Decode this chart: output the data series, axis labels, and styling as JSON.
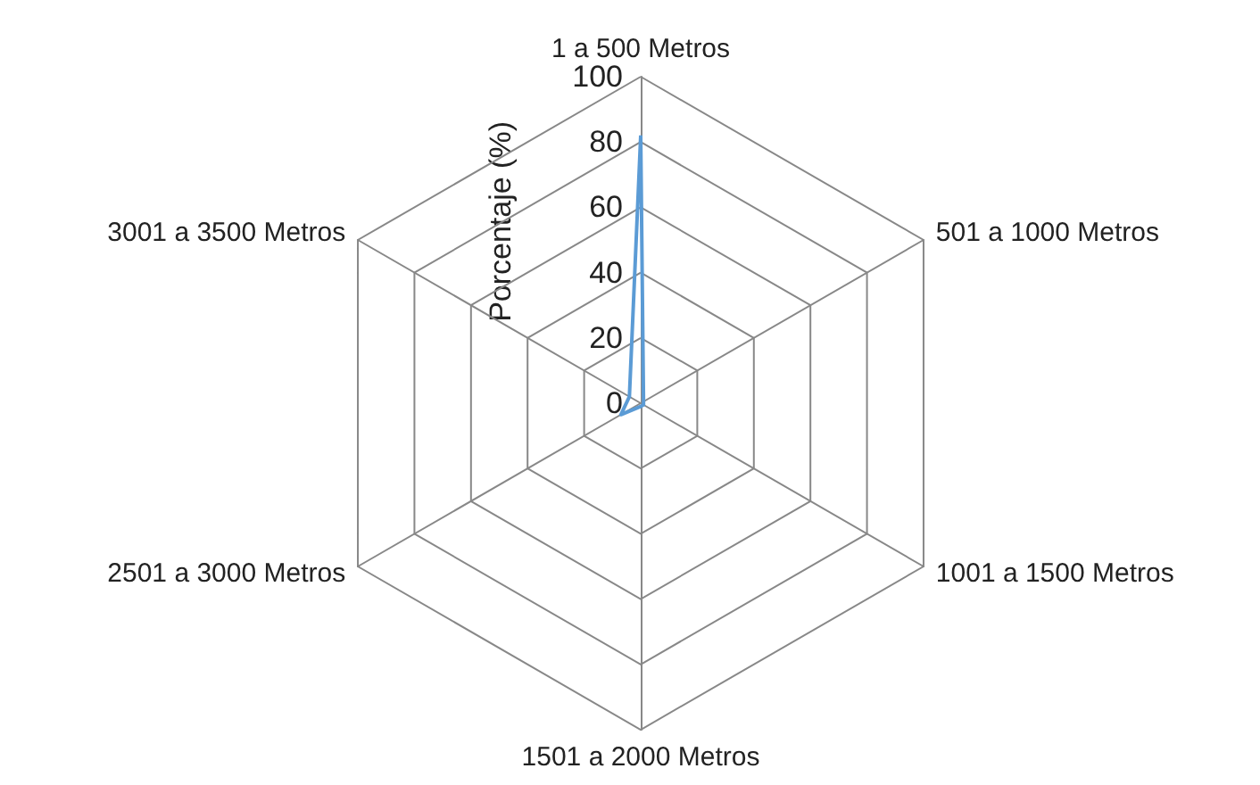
{
  "chart_data": {
    "type": "radar",
    "ylabel": "Porcentaje (%)",
    "categories": [
      "1 a 500 Metros",
      "501 a 1000 Metros",
      "1001 a 1500 Metros",
      "1501 a 2000 Metros",
      "2501 a 3000 Metros",
      "3001 a 3500 Metros"
    ],
    "series": [
      {
        "color": "#5b9bd5",
        "values": [
          82,
          1,
          1,
          1,
          7,
          4
        ]
      }
    ],
    "ylim": [
      0,
      100
    ],
    "yticks": [
      0,
      20,
      40,
      60,
      80,
      100
    ],
    "grid": true,
    "marker": "none",
    "line_style": "solid"
  }
}
